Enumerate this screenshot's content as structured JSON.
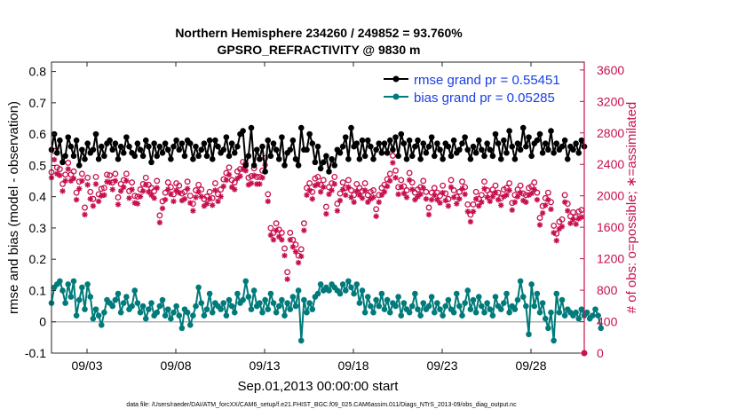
{
  "chart_data": {
    "type": "line",
    "title_line1": "Northern Hemisphere 234260 / 249852 = 93.760%",
    "title_line2": "GPSRO_REFRACTIVITY @ 9830 m",
    "ylabel": "rmse and bias (model - observation)",
    "y2label": "# of obs: o=possible; ∗=assimilated",
    "xlabel": "Sep.01,2013 00:00:00 start",
    "footnote": "data file: /Users/raeder/DAI/ATM_forcXX/CAM6_setup/f.e21.FHIST_BGC.f09_025.CAM6assim.011/Diags_NTrS_2013-09/obs_diag_output.nc",
    "xlim": [
      1.0,
      31.0
    ],
    "ylim": [
      -0.1,
      0.83
    ],
    "y2lim": [
      0,
      3700
    ],
    "yticks": [
      "-0.1",
      "0",
      "0.1",
      "0.2",
      "0.3",
      "0.4",
      "0.5",
      "0.6",
      "0.7",
      "0.8"
    ],
    "y2ticks": [
      "0",
      "400",
      "800",
      "1200",
      "1600",
      "2000",
      "2400",
      "2800",
      "3200",
      "3600"
    ],
    "xticks": [
      {
        "day": 3,
        "label": "09/03"
      },
      {
        "day": 8,
        "label": "09/08"
      },
      {
        "day": 13,
        "label": "09/13"
      },
      {
        "day": 18,
        "label": "09/18"
      },
      {
        "day": 23,
        "label": "09/23"
      },
      {
        "day": 28,
        "label": "09/28"
      }
    ],
    "legend": [
      {
        "label": "rmse grand pr = 0.55451",
        "color": "#000000"
      },
      {
        "label": "bias grand pr = 0.05285",
        "color": "#007a7a"
      }
    ],
    "colors": {
      "rmse": "#000000",
      "bias": "#007a7a",
      "obs": "#c8104e",
      "zero": "#b0b0b0"
    },
    "series": [
      {
        "name": "rmse",
        "values": [
          0.55,
          0.6,
          0.54,
          0.58,
          0.51,
          0.53,
          0.59,
          0.56,
          0.53,
          0.58,
          0.5,
          0.55,
          0.52,
          0.57,
          0.54,
          0.55,
          0.6,
          0.52,
          0.56,
          0.53,
          0.57,
          0.58,
          0.55,
          0.57,
          0.52,
          0.56,
          0.54,
          0.59,
          0.56,
          0.54,
          0.53,
          0.57,
          0.55,
          0.53,
          0.58,
          0.56,
          0.51,
          0.57,
          0.53,
          0.56,
          0.54,
          0.57,
          0.55,
          0.52,
          0.56,
          0.58,
          0.55,
          0.57,
          0.53,
          0.58,
          0.57,
          0.52,
          0.56,
          0.53,
          0.55,
          0.57,
          0.53,
          0.58,
          0.52,
          0.58,
          0.56,
          0.54,
          0.55,
          0.59,
          0.53,
          0.57,
          0.54,
          0.56,
          0.6,
          0.61,
          0.5,
          0.53,
          0.62,
          0.5,
          0.55,
          0.52,
          0.56,
          0.48,
          0.58,
          0.53,
          0.57,
          0.55,
          0.52,
          0.59,
          0.5,
          0.54,
          0.55,
          0.58,
          0.52,
          0.5,
          0.62,
          0.55,
          0.55,
          0.6,
          0.57,
          0.51,
          0.56,
          0.49,
          0.51,
          0.53,
          0.48,
          0.52,
          0.5,
          0.55,
          0.54,
          0.56,
          0.59,
          0.52,
          0.62,
          0.56,
          0.57,
          0.52,
          0.58,
          0.53,
          0.58,
          0.56,
          0.52,
          0.55,
          0.57,
          0.54,
          0.57,
          0.54,
          0.58,
          0.55,
          0.59,
          0.53,
          0.6,
          0.57,
          0.52,
          0.58,
          0.53,
          0.56,
          0.58,
          0.52,
          0.57,
          0.54,
          0.56,
          0.59,
          0.53,
          0.57,
          0.55,
          0.52,
          0.57,
          0.56,
          0.53,
          0.58,
          0.54,
          0.55,
          0.57,
          0.59,
          0.55,
          0.52,
          0.56,
          0.54,
          0.58,
          0.55,
          0.53,
          0.57,
          0.55,
          0.53,
          0.6,
          0.57,
          0.52,
          0.58,
          0.54,
          0.61,
          0.56,
          0.52,
          0.57,
          0.55,
          0.62,
          0.56,
          0.59,
          0.53,
          0.57,
          0.58,
          0.6,
          0.54,
          0.57,
          0.55,
          0.61,
          0.54,
          0.57,
          0.55,
          0.56,
          0.58,
          0.52,
          0.56,
          0.55,
          0.57,
          0.54,
          0.58,
          0.56
        ]
      },
      {
        "name": "bias",
        "values": [
          0.06,
          0.11,
          0.12,
          0.13,
          0.1,
          0.06,
          0.12,
          0.08,
          0.13,
          0.02,
          0.07,
          0.11,
          0.04,
          0.12,
          0.08,
          0.01,
          0.04,
          0.02,
          -0.01,
          0.03,
          0.07,
          0.06,
          0.05,
          0.07,
          0.09,
          0.03,
          0.06,
          0.08,
          0.04,
          0.05,
          0.1,
          0.06,
          0.03,
          0.05,
          0.01,
          0.04,
          0.06,
          0.02,
          0.03,
          0.05,
          0.07,
          0.02,
          0.04,
          0.01,
          0.03,
          0.05,
          0.02,
          -0.02,
          0.04,
          0.03,
          -0.01,
          0.02,
          0.05,
          0.11,
          0.06,
          0.02,
          0.04,
          0.09,
          0.03,
          0.06,
          0.05,
          0.04,
          0.06,
          0.02,
          0.07,
          0.05,
          0.03,
          0.09,
          0.06,
          0.07,
          0.13,
          0.08,
          0.04,
          0.1,
          0.05,
          0.06,
          0.03,
          0.07,
          0.04,
          0.09,
          0.06,
          0.03,
          0.05,
          0.07,
          0.02,
          0.06,
          0.04,
          0.08,
          0.05,
          0.1,
          -0.06,
          0.07,
          0.03,
          0.06,
          0.04,
          0.08,
          0.09,
          0.12,
          0.1,
          0.11,
          0.1,
          0.12,
          0.11,
          0.1,
          0.09,
          0.12,
          0.1,
          0.13,
          0.11,
          0.09,
          0.12,
          0.06,
          0.1,
          0.03,
          0.08,
          0.05,
          0.03,
          0.07,
          0.05,
          0.09,
          0.04,
          0.07,
          0.03,
          0.06,
          0.05,
          0.08,
          0.02,
          0.06,
          0.04,
          0.03,
          0.05,
          0.09,
          0.04,
          0.02,
          0.06,
          0.04,
          0.05,
          0.08,
          0.03,
          0.06,
          0.04,
          0.02,
          0.05,
          0.07,
          0.04,
          0.03,
          0.09,
          0.05,
          0.02,
          0.06,
          0.1,
          0.04,
          0.07,
          0.03,
          0.08,
          0.05,
          0.03,
          0.06,
          0.04,
          0.02,
          0.08,
          0.05,
          0.04,
          0.06,
          0.09,
          0.03,
          0.05,
          0.04,
          0.07,
          0.13,
          0.08,
          0.05,
          -0.04,
          0.12,
          0.05,
          0.09,
          0.03,
          0.06,
          0.01,
          -0.02,
          0.03,
          -0.06,
          0.09,
          0.03,
          0.07,
          0.02,
          0.04,
          0.03,
          0.02,
          0.03,
          0.01,
          0.04,
          0.02,
          0.03,
          0.01,
          0.02,
          0.04,
          0.02,
          -0.02
        ]
      },
      {
        "name": "obs_possible",
        "values": [
          2300,
          2570,
          2360,
          2340,
          2150,
          2270,
          2420,
          2270,
          2310,
          2040,
          2180,
          2280,
          1850,
          2230,
          2050,
          1960,
          2240,
          2020,
          2090,
          2100,
          2270,
          2260,
          2170,
          2280,
          1980,
          2150,
          2200,
          2280,
          2060,
          2170,
          2000,
          1990,
          2080,
          2150,
          2230,
          2140,
          2100,
          2060,
          2190,
          1750,
          1930,
          2040,
          2170,
          2110,
          2020,
          2160,
          2130,
          2030,
          2050,
          2180,
          2000,
          1900,
          2070,
          2140,
          2080,
          1960,
          1990,
          2050,
          1970,
          2160,
          2020,
          2080,
          2210,
          2290,
          2360,
          2200,
          2170,
          2310,
          2340,
          2430,
          2410,
          2230,
          2250,
          2350,
          2240,
          2240,
          2320,
          2480,
          2020,
          1590,
          1530,
          1650,
          1570,
          1530,
          1330,
          1030,
          1530,
          1440,
          1380,
          1240,
          1320,
          1650,
          2100,
          2160,
          2050,
          2220,
          2240,
          2140,
          2200,
          1860,
          2110,
          2160,
          2240,
          1900,
          2030,
          2170,
          2100,
          2200,
          2070,
          2010,
          2150,
          2100,
          2060,
          2160,
          2010,
          2050,
          2070,
          1830,
          2010,
          2100,
          2140,
          2210,
          2280,
          2510,
          2320,
          2110,
          2200,
          2120,
          2070,
          2290,
          2170,
          2040,
          2080,
          2110,
          2190,
          2050,
          1850,
          2040,
          2100,
          2040,
          2000,
          2130,
          2030,
          1960,
          2200,
          2070,
          1990,
          2050,
          2180,
          2110,
          1890,
          1760,
          1890,
          2050,
          1960,
          2010,
          2180,
          2070,
          2020,
          2080,
          2130,
          2040,
          1970,
          2080,
          2100,
          2160,
          1910,
          2010,
          2080,
          2130,
          2030,
          2010,
          2100,
          2120,
          2170,
          2040,
          1720,
          1870,
          1970,
          2040,
          1920,
          1620,
          1520,
          1670,
          1700,
          2010,
          1900,
          1740,
          1790,
          1730,
          1800,
          1820,
          0
        ]
      },
      {
        "name": "obs_assimilated",
        "values": [
          2230,
          2460,
          2280,
          2260,
          2060,
          2190,
          2340,
          2190,
          2220,
          1950,
          2090,
          2190,
          1760,
          2140,
          1960,
          1870,
          2150,
          1930,
          2000,
          2010,
          2180,
          2170,
          2080,
          2190,
          1890,
          2060,
          2110,
          2190,
          1970,
          2080,
          1910,
          1900,
          1990,
          2060,
          2140,
          2050,
          2010,
          1970,
          2100,
          1660,
          1840,
          1950,
          2080,
          2020,
          1930,
          2070,
          2040,
          1940,
          1960,
          2090,
          1910,
          1810,
          1980,
          2050,
          1990,
          1870,
          1900,
          1960,
          1880,
          2070,
          1930,
          1990,
          2120,
          2200,
          2270,
          2110,
          2080,
          2220,
          2250,
          2340,
          2320,
          2140,
          2160,
          2260,
          2150,
          2150,
          2230,
          2390,
          1930,
          1500,
          1440,
          1560,
          1480,
          1440,
          1240,
          940,
          1440,
          1350,
          1290,
          1150,
          1230,
          1560,
          2010,
          2070,
          1960,
          2130,
          2150,
          2050,
          2110,
          1770,
          2020,
          2070,
          2150,
          1810,
          1940,
          2080,
          2010,
          2110,
          1980,
          1920,
          2060,
          2010,
          1970,
          2070,
          1920,
          1960,
          1980,
          1740,
          1920,
          2010,
          2050,
          2120,
          2190,
          2420,
          2230,
          2020,
          2110,
          2030,
          1980,
          2200,
          2080,
          1950,
          1990,
          2020,
          2100,
          1960,
          1760,
          1950,
          2010,
          1950,
          1910,
          2040,
          1940,
          1870,
          2110,
          1980,
          1900,
          1960,
          2090,
          2020,
          1800,
          1670,
          1800,
          1960,
          1870,
          1920,
          2090,
          1980,
          1930,
          1990,
          2040,
          1950,
          1880,
          1990,
          2010,
          2070,
          1820,
          1920,
          1990,
          2040,
          1940,
          1920,
          2010,
          2030,
          2080,
          1950,
          1630,
          1780,
          1880,
          1950,
          1830,
          1530,
          1430,
          1580,
          1610,
          1920,
          1810,
          1650,
          1700,
          1640,
          1710,
          1730,
          0
        ]
      }
    ]
  }
}
